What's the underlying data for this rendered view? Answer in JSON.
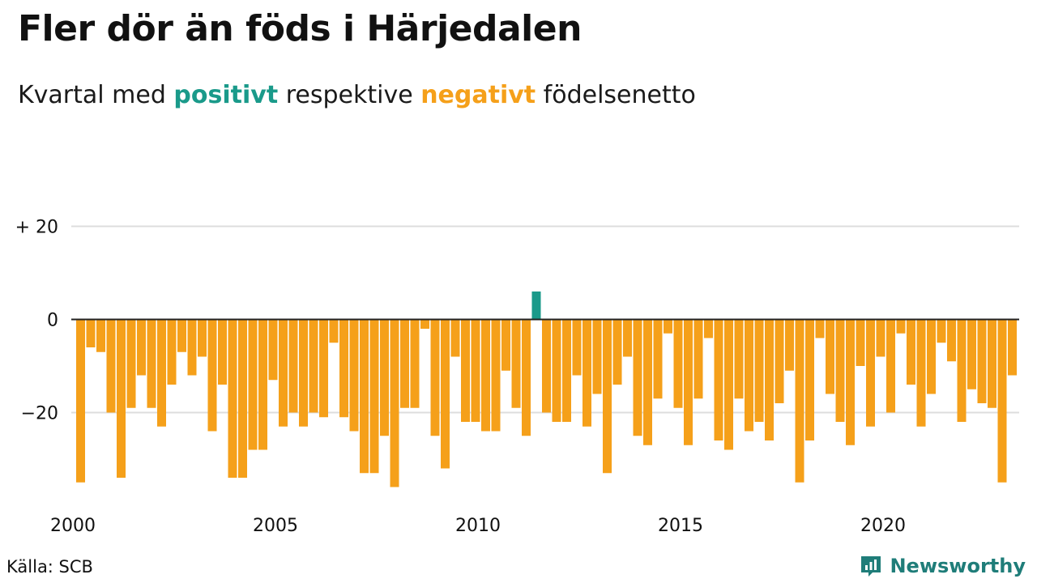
{
  "title": "Fler dör än föds i Härjedalen",
  "subtitle": {
    "before": "Kvartal med ",
    "positive_word": "positivt",
    "middle": " respektive ",
    "negative_word": "negativt",
    "after": " födelsenetto"
  },
  "source": "Källa: SCB",
  "brand": "Newsworthy",
  "colors": {
    "positive": "#1a9a8a",
    "negative": "#f5a01a",
    "grid": "#dddddd",
    "axis": "#222222",
    "brand": "#1f7d79"
  },
  "chart_data": {
    "type": "bar",
    "x_start": "2000 Q1",
    "x_ticks": [
      "2000",
      "2005",
      "2010",
      "2015",
      "2020"
    ],
    "y_ticks": [
      "+ 20",
      "0",
      "−20"
    ],
    "y_tick_values": [
      20,
      0,
      -20
    ],
    "ylim": [
      -37,
      20
    ],
    "grid": true,
    "values": [
      -35,
      -6,
      -7,
      -20,
      -34,
      -19,
      -12,
      -19,
      -23,
      -14,
      -7,
      -12,
      -8,
      -24,
      -14,
      -34,
      -34,
      -28,
      -28,
      -13,
      -23,
      -20,
      -23,
      -20,
      -21,
      -5,
      -21,
      -24,
      -33,
      -33,
      -25,
      -36,
      -19,
      -19,
      -2,
      -25,
      -32,
      -8,
      -22,
      -22,
      -24,
      -24,
      -11,
      -19,
      -25,
      6,
      -20,
      -22,
      -22,
      -12,
      -23,
      -16,
      -33,
      -14,
      -8,
      -25,
      -27,
      -17,
      -3,
      -19,
      -27,
      -17,
      -4,
      -26,
      -28,
      -17,
      -24,
      -22,
      -26,
      -18,
      -11,
      -35,
      -26,
      -4,
      -16,
      -22,
      -27,
      -10,
      -23,
      -8,
      -20,
      -3,
      -14,
      -23,
      -16,
      -5,
      -9,
      -22,
      -15,
      -18,
      -19,
      -35,
      -12
    ]
  }
}
